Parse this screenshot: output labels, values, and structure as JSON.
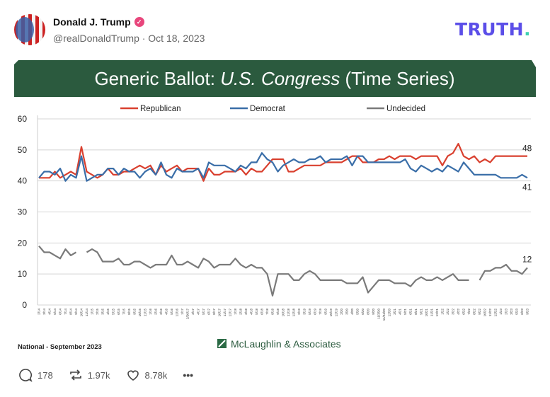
{
  "post": {
    "author_name": "Donald J. Trump",
    "verified_icon": "verified-badge-icon",
    "handle_date": "@realDonaldTrump · Oct 18, 2023",
    "brand_logo": "TRUTH",
    "brand_dot": "."
  },
  "colors": {
    "republican": "#d9402f",
    "democrat": "#3a6ea8",
    "undecided": "#7a7a7a",
    "header_band": "#2b5a3e",
    "brand": "#5b4ee8"
  },
  "chart_data": {
    "type": "line",
    "title_parts": [
      "Generic Ballot: ",
      "U.S. Congress",
      " (Time Series)"
    ],
    "ylim": [
      0,
      60
    ],
    "yticks": [
      "0",
      "10",
      "20",
      "30",
      "40",
      "50",
      "60"
    ],
    "grid": true,
    "legend_placement": "top",
    "x": [
      "2/14",
      "3/14",
      "4/14",
      "5/14",
      "6/14",
      "7/14",
      "8/14",
      "9/14",
      "10/14",
      "11/14",
      "1/15",
      "2/15",
      "3/15",
      "4/15",
      "5/15",
      "6/15",
      "7/15",
      "8/15",
      "9/15",
      "10/15",
      "11/15",
      "1/16",
      "2/16",
      "3/16",
      "4/16",
      "5/16",
      "12/16",
      "1/17",
      "2/20/17",
      "3/17",
      "4/17",
      "5/17",
      "6/17",
      "8/17",
      "10/17",
      "11/17",
      "12/17",
      "1/18",
      "2/18",
      "3/18",
      "4/18",
      "5/18",
      "6/18",
      "7/18",
      "8/18",
      "9/18",
      "10/18",
      "11/18",
      "12/18",
      "2/19",
      "3/19",
      "5/19",
      "6/19",
      "7/19",
      "9/19",
      "10/19",
      "12/19",
      "2/20",
      "3/20",
      "4/20",
      "5/20",
      "6/20",
      "8/20",
      "9/20",
      "11/3/20",
      "11/24/20",
      "12/20",
      "3/21",
      "4/21",
      "5/21",
      "6/21",
      "8/21",
      "9/21",
      "10/21",
      "11/21",
      "12/21",
      "1/22",
      "2/22",
      "3/22",
      "4/22",
      "6/22",
      "7/22",
      "8/22",
      "9/22",
      "10/22",
      "11/22",
      "12/22",
      "1/23",
      "2/23",
      "3/23",
      "5/23",
      "6/23",
      "9/23"
    ],
    "series": [
      {
        "name": "Republican",
        "color": "#d9402f",
        "end_label": "48",
        "values": [
          41,
          41,
          41,
          43,
          41,
          42,
          43,
          42,
          51,
          43,
          42,
          41,
          42,
          44,
          42,
          42,
          43,
          43,
          44,
          45,
          44,
          45,
          42,
          45,
          43,
          44,
          45,
          43,
          44,
          44,
          44,
          40,
          44,
          42,
          42,
          43,
          43,
          43,
          44,
          42,
          44,
          43,
          43,
          45,
          47,
          47,
          47,
          43,
          43,
          44,
          45,
          45,
          45,
          45,
          46,
          46,
          46,
          46,
          47,
          48,
          48,
          46,
          46,
          46,
          47,
          47,
          48,
          47,
          48,
          48,
          48,
          47,
          48,
          48,
          48,
          48,
          45,
          48,
          49,
          52,
          48,
          47,
          48,
          46,
          47,
          46,
          48,
          48,
          48,
          48,
          48,
          48,
          48
        ]
      },
      {
        "name": "Democrat",
        "color": "#3a6ea8",
        "end_label": "41",
        "values": [
          41,
          43,
          43,
          42,
          44,
          40,
          42,
          41,
          48,
          40,
          41,
          42,
          42,
          44,
          44,
          42,
          44,
          43,
          43,
          41,
          43,
          44,
          42,
          46,
          42,
          41,
          44,
          43,
          43,
          43,
          44,
          41,
          46,
          45,
          45,
          45,
          44,
          43,
          45,
          44,
          46,
          46,
          49,
          47,
          46,
          43,
          45,
          46,
          47,
          46,
          46,
          47,
          47,
          48,
          46,
          47,
          47,
          47,
          48,
          45,
          48,
          48,
          46,
          46,
          46,
          46,
          46,
          46,
          46,
          47,
          44,
          43,
          45,
          44,
          43,
          44,
          43,
          45,
          44,
          43,
          46,
          44,
          42,
          42,
          42,
          42,
          42,
          41,
          41,
          41,
          41,
          42,
          41
        ]
      },
      {
        "name": "Undecided",
        "color": "#7a7a7a",
        "end_label": "12",
        "values": [
          19,
          17,
          17,
          16,
          15,
          18,
          16,
          17,
          null,
          17,
          18,
          17,
          14,
          14,
          14,
          15,
          13,
          13,
          14,
          14,
          13,
          12,
          13,
          13,
          13,
          16,
          13,
          13,
          14,
          13,
          12,
          15,
          14,
          12,
          13,
          13,
          13,
          15,
          13,
          12,
          13,
          12,
          12,
          10,
          3,
          10,
          10,
          10,
          8,
          8,
          10,
          11,
          10,
          8,
          8,
          8,
          8,
          8,
          7,
          7,
          7,
          9,
          4,
          6,
          8,
          8,
          8,
          7,
          7,
          7,
          6,
          8,
          9,
          8,
          8,
          9,
          8,
          9,
          10,
          8,
          8,
          8,
          null,
          8,
          11,
          11,
          12,
          12,
          13,
          11,
          11,
          10,
          12
        ]
      }
    ],
    "source_note": "National - September 2023",
    "pollster": "McLaughlin & Associates"
  },
  "actions": {
    "replies": "178",
    "reposts": "1.97k",
    "likes": "8.78k",
    "more": "•••"
  }
}
